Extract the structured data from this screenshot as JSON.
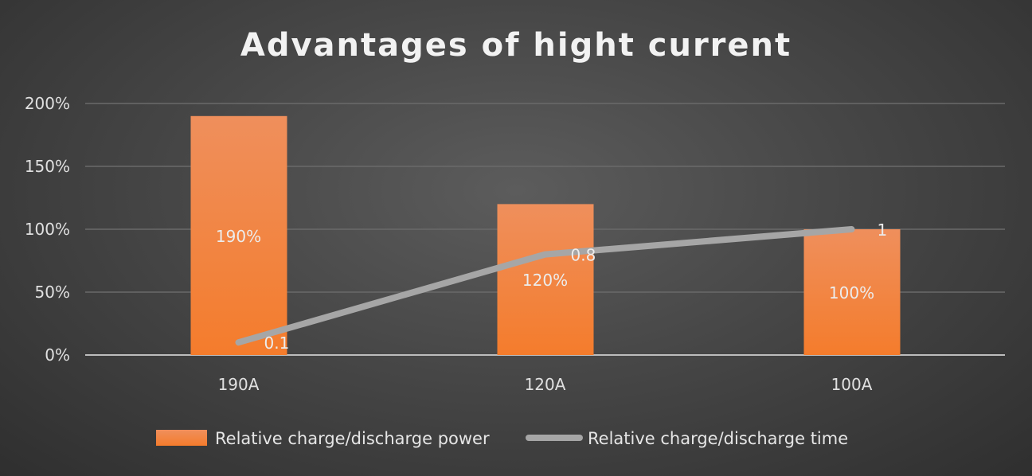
{
  "chart_data": {
    "type": "bar+line",
    "title": "Advantages of hight current",
    "categories": [
      "190A",
      "120A",
      "100A"
    ],
    "ylim": [
      0,
      2.0
    ],
    "yticks": [
      "0%",
      "50%",
      "100%",
      "150%",
      "200%"
    ],
    "grid": true,
    "legend_position": "bottom",
    "series": [
      {
        "name": "Relative charge/discharge power",
        "kind": "bar",
        "values": [
          1.9,
          1.2,
          1.0
        ],
        "labels": [
          "190%",
          "120%",
          "100%"
        ],
        "color": "#f47c2c"
      },
      {
        "name": "Relative charge/discharge time",
        "kind": "line",
        "values": [
          0.1,
          0.8,
          1
        ],
        "labels": [
          "0.1",
          "0.8",
          "1"
        ],
        "color": "#a6a6a6"
      }
    ]
  }
}
